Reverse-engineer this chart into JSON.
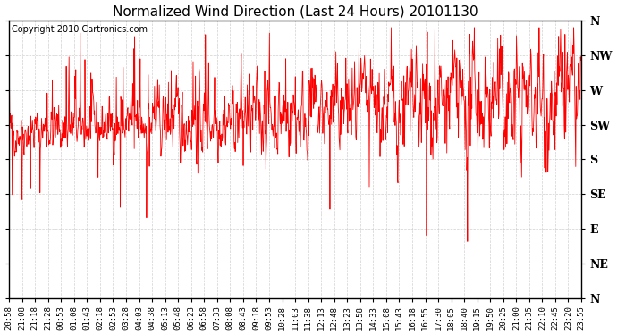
{
  "title": "Normalized Wind Direction (Last 24 Hours) 20101130",
  "copyright_text": "Copyright 2010 Cartronics.com",
  "line_color": "#ff0000",
  "background_color": "#ffffff",
  "grid_color": "#cccccc",
  "border_color": "#000000",
  "ytick_labels": [
    "N",
    "NW",
    "W",
    "SW",
    "S",
    "SE",
    "E",
    "NE",
    "N"
  ],
  "ytick_values": [
    8,
    7,
    6,
    5,
    4,
    3,
    2,
    1,
    0
  ],
  "xtick_labels": [
    "20:58",
    "21:08",
    "21:18",
    "21:28",
    "00:53",
    "01:08",
    "01:43",
    "02:18",
    "02:53",
    "03:28",
    "04:03",
    "04:38",
    "05:13",
    "05:48",
    "06:23",
    "06:58",
    "07:33",
    "08:08",
    "08:43",
    "09:18",
    "09:53",
    "10:28",
    "11:03",
    "11:38",
    "12:13",
    "12:48",
    "13:23",
    "13:58",
    "14:33",
    "15:08",
    "15:43",
    "16:18",
    "16:55",
    "17:30",
    "18:05",
    "18:40",
    "19:15",
    "19:50",
    "20:25",
    "21:00",
    "21:35",
    "22:10",
    "22:45",
    "23:20",
    "23:55"
  ],
  "seed": 42,
  "n_points": 1440,
  "title_fontsize": 11,
  "ylabel_fontsize": 9,
  "xlabel_fontsize": 6.5,
  "copyright_fontsize": 7
}
